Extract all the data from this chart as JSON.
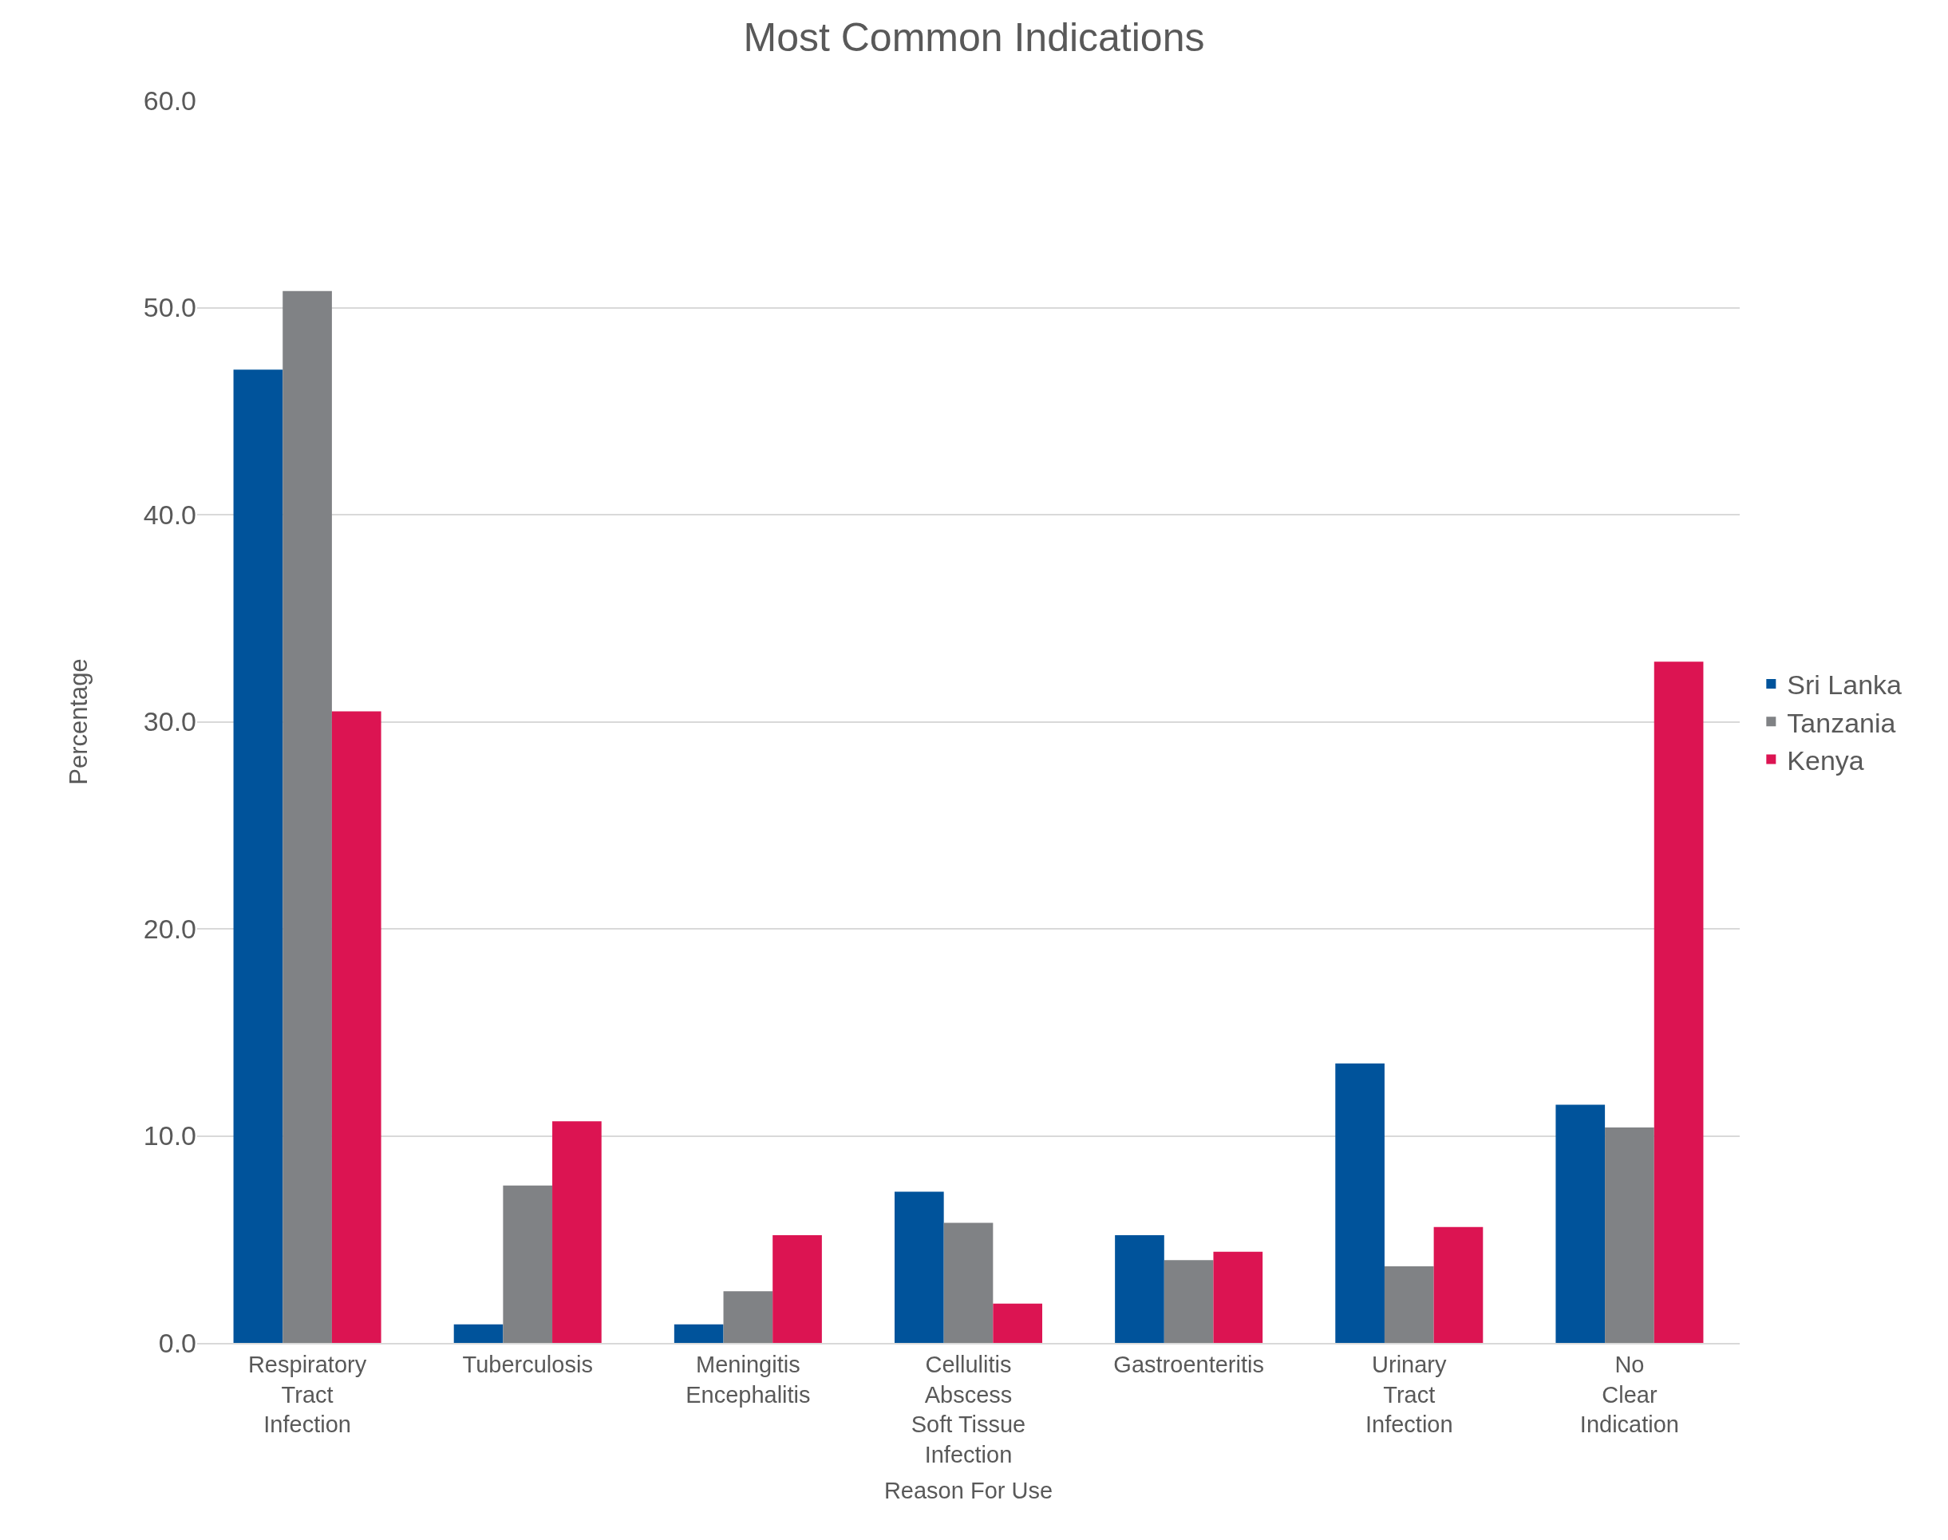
{
  "chart_data": {
    "type": "bar",
    "title": "Most Common Indications",
    "xlabel": "Reason For Use",
    "ylabel": "Percentage",
    "categories": [
      "Respiratory\nTract\nInfection",
      "Tuberculosis",
      "Meningitis\nEncephalitis",
      "Cellulitis\nAbscess\nSoft Tissue\nInfection",
      "Gastroenteritis",
      "Urinary\nTract\nInfection",
      "No\nClear\nIndication"
    ],
    "series": [
      {
        "name": "Sri Lanka",
        "color": "#00539b",
        "values": [
          47.0,
          0.9,
          0.9,
          7.3,
          5.2,
          13.5,
          11.5
        ]
      },
      {
        "name": "Tanzania",
        "color": "#808285",
        "values": [
          50.8,
          7.6,
          2.5,
          5.8,
          4.0,
          3.7,
          10.4
        ]
      },
      {
        "name": "Kenya",
        "color": "#dc1452",
        "values": [
          30.5,
          10.7,
          5.2,
          1.9,
          4.4,
          5.6,
          32.9
        ]
      }
    ],
    "ylim": [
      0,
      60
    ],
    "yticks": [
      {
        "value": 0,
        "label": "0.0"
      },
      {
        "value": 10,
        "label": "10.0"
      },
      {
        "value": 20,
        "label": "20.0"
      },
      {
        "value": 30,
        "label": "30.0"
      },
      {
        "value": 40,
        "label": "40.0"
      },
      {
        "value": 50,
        "label": "50.0"
      },
      {
        "value": 60,
        "label": "60.0"
      }
    ],
    "grid": "y",
    "legend": "right"
  }
}
